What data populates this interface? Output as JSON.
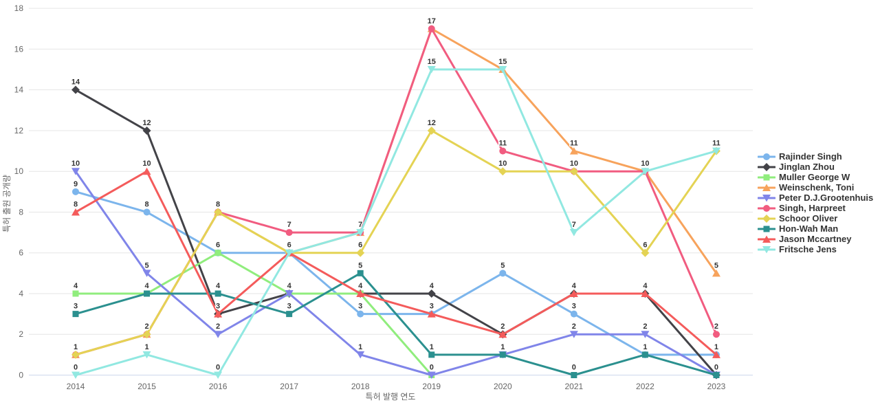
{
  "chart_data": {
    "type": "line",
    "title": "",
    "xlabel": "특허 발행 연도",
    "ylabel": "특허 출원 공개량",
    "categories": [
      "2014",
      "2015",
      "2016",
      "2017",
      "2018",
      "2019",
      "2020",
      "2021",
      "2022",
      "2023"
    ],
    "ylim": [
      0,
      18
    ],
    "ytick_step": 2,
    "grid": true,
    "legend_position": "right",
    "palette": {
      "grid_color": "#e6e6e6",
      "axis_line_color": "#ccd6eb",
      "axis_text_color": "#666666",
      "data_label_color": "#333333",
      "legend_text_color": "#333333"
    },
    "series": [
      {
        "name": "Rajinder Singh",
        "color": "#7cb5ec",
        "marker": "circle",
        "values": [
          9,
          8,
          6,
          6,
          3,
          3,
          5,
          3,
          1,
          1
        ]
      },
      {
        "name": "Jinglan Zhou",
        "color": "#434348",
        "marker": "diamond",
        "values": [
          14,
          12,
          3,
          4,
          4,
          4,
          2,
          4,
          4,
          0
        ]
      },
      {
        "name": "Muller George W",
        "color": "#90ed7d",
        "marker": "square",
        "values": [
          4,
          4,
          6,
          4,
          4,
          0,
          null,
          null,
          null,
          null
        ]
      },
      {
        "name": "Weinschenk, Toni",
        "color": "#f7a35c",
        "marker": "triangle",
        "values": [
          1,
          2,
          8,
          6,
          7,
          17,
          15,
          11,
          10,
          5
        ]
      },
      {
        "name": "Peter D.J.Grootenhuis",
        "color": "#8085e9",
        "marker": "triangle-down",
        "values": [
          10,
          5,
          2,
          4,
          1,
          0,
          1,
          2,
          2,
          0
        ]
      },
      {
        "name": "Singh, Harpreet",
        "color": "#f15c80",
        "marker": "circle",
        "values": [
          1,
          2,
          8,
          7,
          7,
          17,
          11,
          10,
          10,
          2
        ]
      },
      {
        "name": "Schoor Oliver",
        "color": "#e4d354",
        "marker": "diamond",
        "values": [
          1,
          2,
          8,
          6,
          6,
          12,
          10,
          10,
          6,
          11
        ]
      },
      {
        "name": "Hon-Wah Man",
        "color": "#2b908f",
        "marker": "square",
        "values": [
          3,
          4,
          4,
          3,
          5,
          1,
          1,
          0,
          1,
          0
        ]
      },
      {
        "name": "Jason Mccartney",
        "color": "#f45b5b",
        "marker": "triangle",
        "values": [
          8,
          10,
          3,
          6,
          4,
          3,
          2,
          4,
          4,
          1
        ]
      },
      {
        "name": "Fritsche Jens",
        "color": "#91e8e1",
        "marker": "triangle-down",
        "values": [
          0,
          1,
          0,
          6,
          7,
          15,
          15,
          7,
          10,
          11
        ]
      }
    ]
  }
}
